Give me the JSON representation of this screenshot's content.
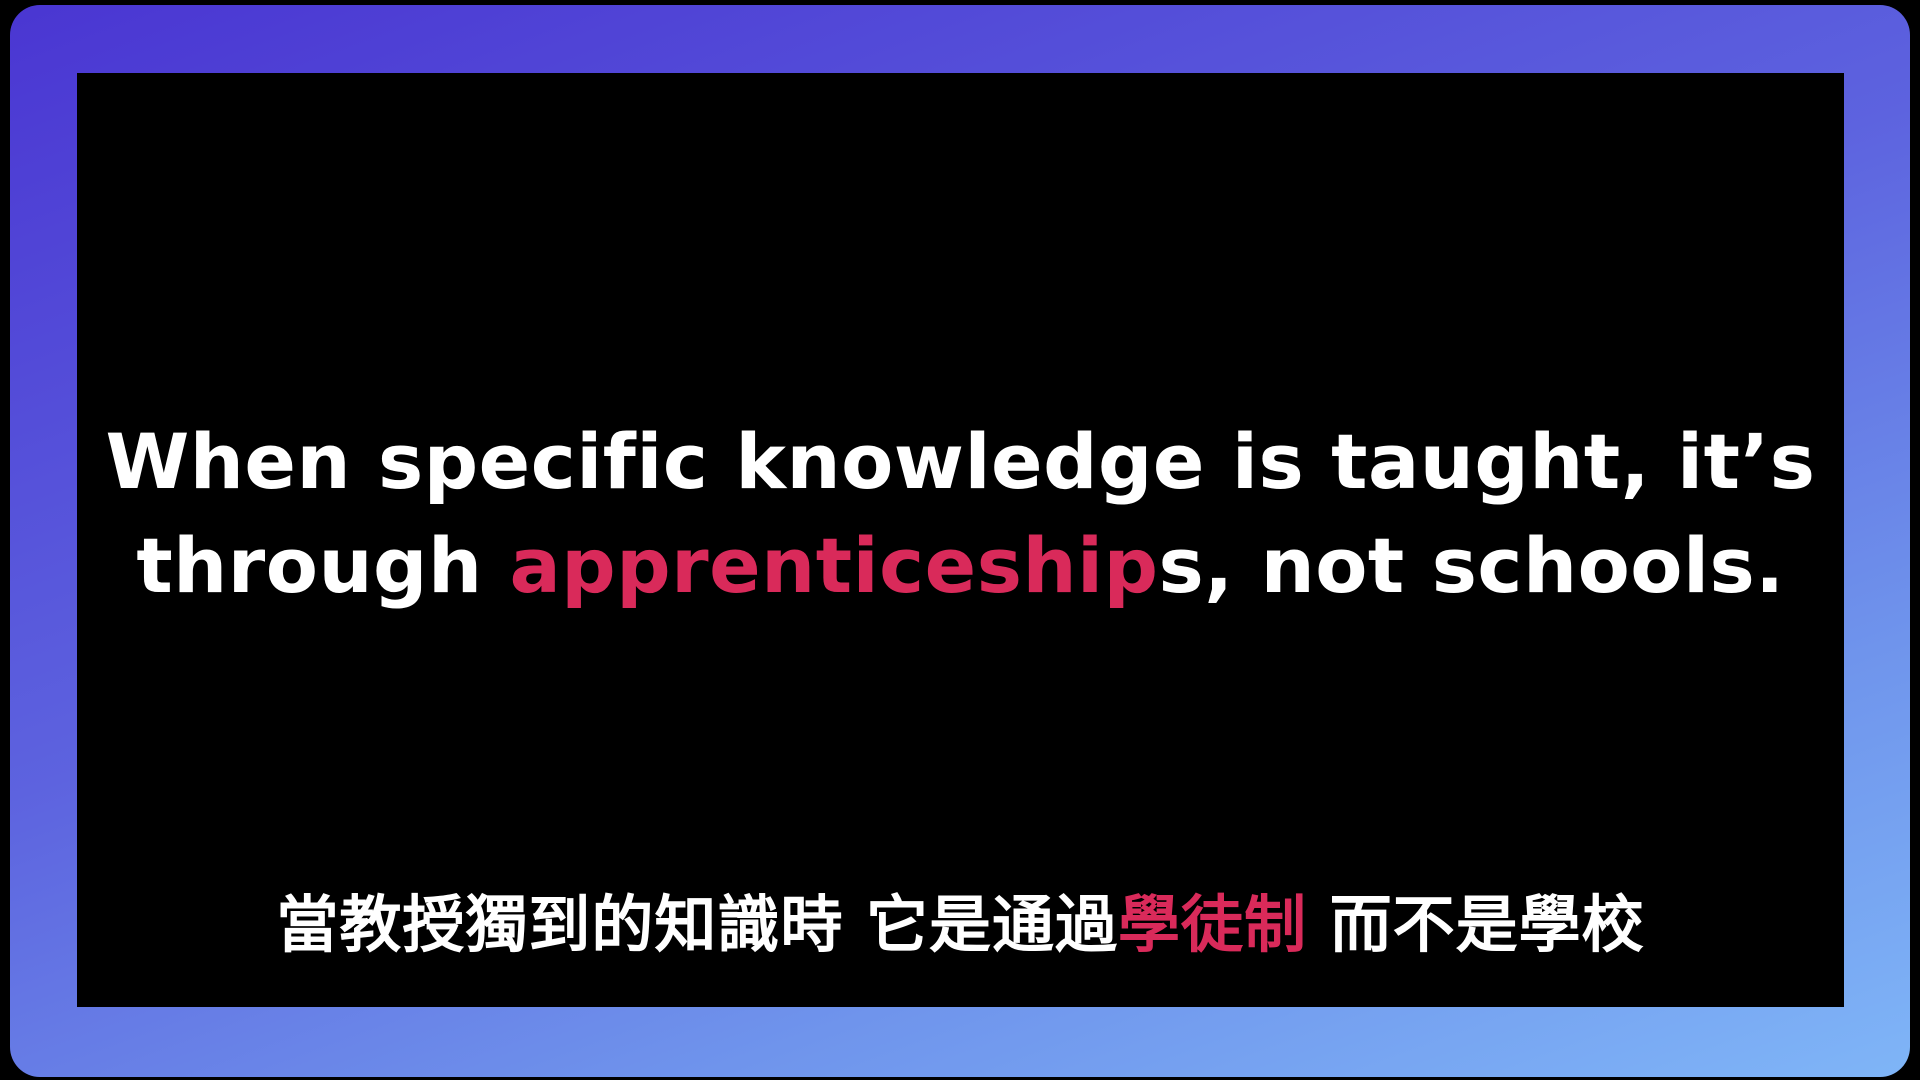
{
  "slide": {
    "english": {
      "line1": "When specific knowledge is taught, it’s",
      "line2_before": "through ",
      "line2_highlight": "apprenticeship",
      "line2_after": "s, not schools."
    },
    "chinese": {
      "before": "當教授獨到的知識時 它是通過",
      "highlight": "學徒制",
      "after": " 而不是學校"
    }
  },
  "colors": {
    "highlight": "#d92a5a",
    "text": "#ffffff",
    "panel_background": "#000000",
    "frame_gradient_start": "#4a36d2",
    "frame_gradient_end": "#7fb5f7"
  }
}
